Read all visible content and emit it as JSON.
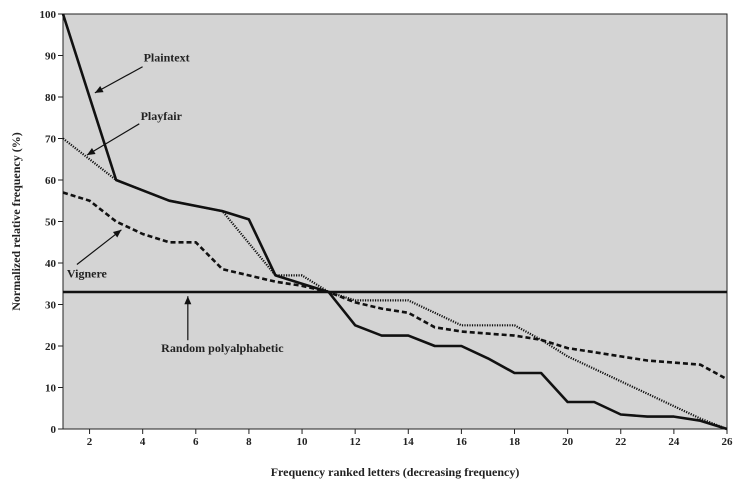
{
  "chart_data": {
    "type": "line",
    "xlabel": "Frequency ranked letters (decreasing frequency)",
    "ylabel": "Normalized relative frequency (%)",
    "xlim": [
      1,
      26
    ],
    "ylim": [
      0,
      100
    ],
    "x_ticks": [
      2,
      4,
      6,
      8,
      10,
      12,
      14,
      16,
      18,
      20,
      22,
      24,
      26
    ],
    "y_ticks": [
      0,
      10,
      20,
      30,
      40,
      50,
      60,
      70,
      80,
      90,
      100
    ],
    "x_tick_labels": [
      "2",
      "4",
      "6",
      "8",
      "10",
      "12",
      "14",
      "16",
      "18",
      "20",
      "22",
      "24",
      "26"
    ],
    "y_tick_labels": [
      "0",
      "10",
      "20",
      "30",
      "40",
      "50",
      "60",
      "70",
      "80",
      "90",
      "100"
    ],
    "grid": false,
    "background": "#d4d4d4",
    "series": [
      {
        "name": "Plaintext",
        "style": "solid",
        "x": [
          1,
          3,
          5,
          7,
          8,
          9,
          10,
          11,
          12,
          13,
          14,
          15,
          16,
          17,
          18,
          19,
          20,
          21,
          22,
          23,
          24,
          25,
          26
        ],
        "y": [
          100,
          60,
          55,
          52.5,
          50.5,
          37,
          35,
          33,
          25,
          22.5,
          22.5,
          20,
          20,
          17,
          13.5,
          13.5,
          6.5,
          6.5,
          3.5,
          3,
          3,
          2,
          0
        ]
      },
      {
        "name": "Playfair",
        "style": "dotted",
        "x": [
          1,
          3,
          5,
          7,
          9,
          10,
          11,
          12,
          13,
          14,
          15,
          16,
          17,
          18,
          19,
          20,
          21,
          22,
          23,
          24,
          25,
          26
        ],
        "y": [
          70,
          60,
          55,
          52.5,
          37,
          37,
          33,
          31,
          31,
          31,
          28,
          25,
          25,
          25,
          21.5,
          17.5,
          14.5,
          11.5,
          8.5,
          5.5,
          2.5,
          0
        ]
      },
      {
        "name": "Vignere",
        "style": "dashed",
        "x": [
          1,
          2,
          3,
          4,
          5,
          6,
          7,
          8,
          9,
          10,
          11,
          12,
          13,
          14,
          15,
          16,
          17,
          18,
          19,
          20,
          21,
          22,
          23,
          24,
          25,
          26
        ],
        "y": [
          57,
          55,
          50,
          47,
          45,
          45,
          38.5,
          37,
          35.5,
          34.5,
          33,
          30.5,
          29,
          28,
          24.5,
          23.5,
          23,
          22.5,
          21.5,
          19.5,
          18.5,
          17.5,
          16.5,
          16,
          15.5,
          12
        ]
      },
      {
        "name": "Random polyalphabetic",
        "style": "solid",
        "x": [
          1,
          26
        ],
        "y": [
          33,
          33
        ]
      }
    ],
    "annotations": [
      {
        "text": "Plaintext",
        "label_at": [
          4.9,
          88.5
        ],
        "arrow_to": [
          2.2,
          81
        ]
      },
      {
        "text": "Playfair",
        "label_at": [
          4.7,
          74.5
        ],
        "arrow_to": [
          1.9,
          66
        ]
      },
      {
        "text": "Vignere",
        "label_at": [
          1.9,
          36.5
        ],
        "arrow_to": [
          3.2,
          48
        ]
      },
      {
        "text": "Random polyalphabetic",
        "label_at": [
          7.0,
          18.5
        ],
        "arrow_to": [
          5.7,
          32
        ]
      }
    ]
  }
}
